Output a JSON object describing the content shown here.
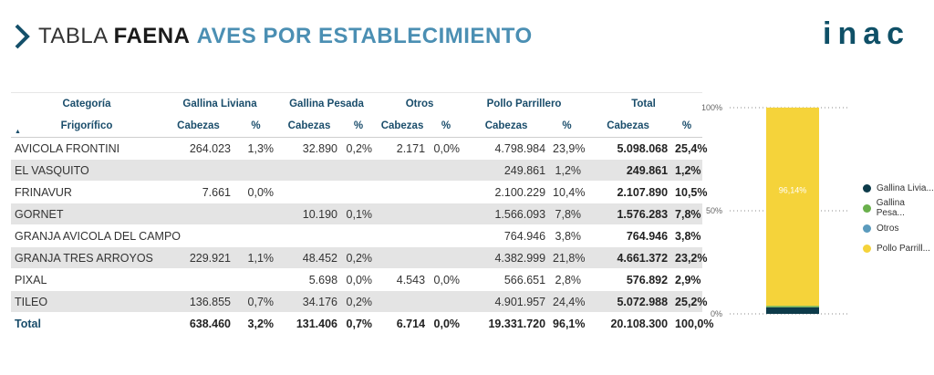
{
  "title": {
    "part1": "TABLA",
    "part2": "FAENA",
    "part3": "AVES POR ESTABLECIMIENTO"
  },
  "logo": "inac",
  "table": {
    "header_groups": [
      "Categoría",
      "Gallina Liviana",
      "Gallina Pesada",
      "Otros",
      "Pollo Parrillero",
      "Total"
    ],
    "subheaders": [
      "Frigorífico",
      "Cabezas",
      "%",
      "Cabezas",
      "%",
      "Cabezas",
      "%",
      "Cabezas",
      "%",
      "Cabezas",
      "%"
    ],
    "rows": [
      [
        "AVICOLA FRONTINI",
        "264.023",
        "1,3%",
        "32.890",
        "0,2%",
        "2.171",
        "0,0%",
        "4.798.984",
        "23,9%",
        "5.098.068",
        "25,4%"
      ],
      [
        "EL VASQUITO",
        "",
        "",
        "",
        "",
        "",
        "",
        "249.861",
        "1,2%",
        "249.861",
        "1,2%"
      ],
      [
        "FRINAVUR",
        "7.661",
        "0,0%",
        "",
        "",
        "",
        "",
        "2.100.229",
        "10,4%",
        "2.107.890",
        "10,5%"
      ],
      [
        "GORNET",
        "",
        "",
        "10.190",
        "0,1%",
        "",
        "",
        "1.566.093",
        "7,8%",
        "1.576.283",
        "7,8%"
      ],
      [
        "GRANJA AVICOLA DEL CAMPO",
        "",
        "",
        "",
        "",
        "",
        "",
        "764.946",
        "3,8%",
        "764.946",
        "3,8%"
      ],
      [
        "GRANJA TRES ARROYOS",
        "229.921",
        "1,1%",
        "48.452",
        "0,2%",
        "",
        "",
        "4.382.999",
        "21,8%",
        "4.661.372",
        "23,2%"
      ],
      [
        "PIXAL",
        "",
        "",
        "5.698",
        "0,0%",
        "4.543",
        "0,0%",
        "566.651",
        "2,8%",
        "576.892",
        "2,9%"
      ],
      [
        "TILEO",
        "136.855",
        "0,7%",
        "34.176",
        "0,2%",
        "",
        "",
        "4.901.957",
        "24,4%",
        "5.072.988",
        "25,2%"
      ]
    ],
    "total": [
      "Total",
      "638.460",
      "3,2%",
      "131.406",
      "0,7%",
      "6.714",
      "0,0%",
      "19.331.720",
      "96,1%",
      "20.108.300",
      "100,0%"
    ]
  },
  "chart_data": {
    "type": "bar",
    "stacked": true,
    "percent_stacked": true,
    "categories": [
      ""
    ],
    "series": [
      {
        "name": "Gallina Livia...",
        "values": [
          3.2
        ],
        "color": "#0d3b4a"
      },
      {
        "name": "Gallina Pesa...",
        "values": [
          0.7
        ],
        "color": "#6ab04c"
      },
      {
        "name": "Otros",
        "values": [
          0.0
        ],
        "color": "#5b9bbd"
      },
      {
        "name": "Pollo Parrill...",
        "values": [
          96.14
        ],
        "color": "#f5d33a"
      }
    ],
    "ylim": [
      0,
      100
    ],
    "yticks": [
      "0%",
      "50%",
      "100%"
    ],
    "data_label": "96,14%",
    "legend": "right"
  }
}
